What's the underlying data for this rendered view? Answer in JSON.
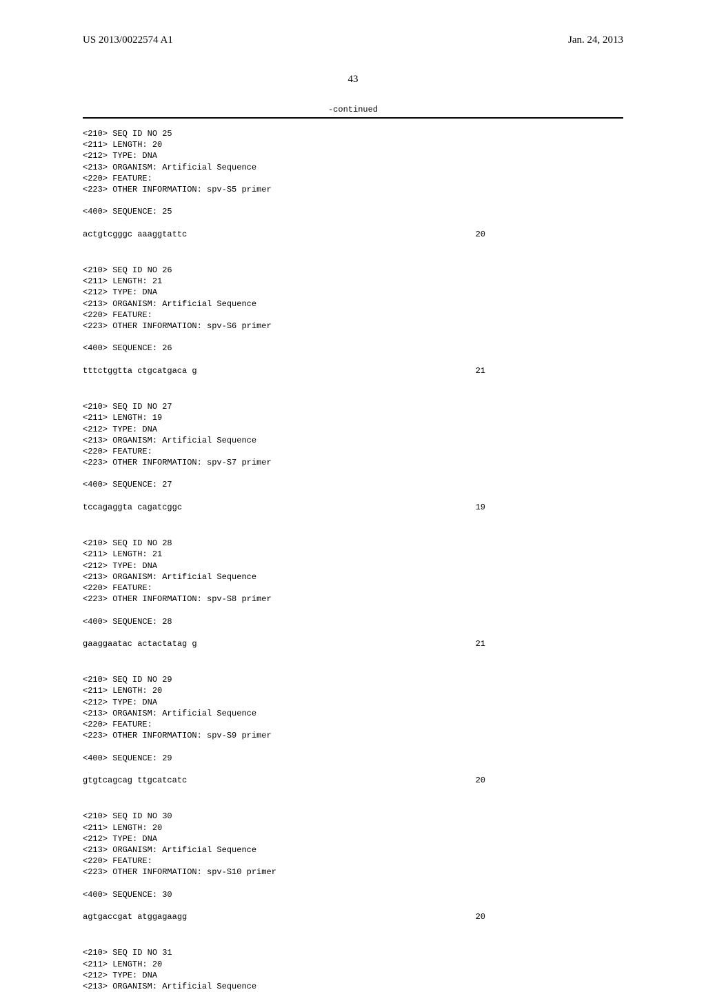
{
  "header": {
    "left": "US 2013/0022574 A1",
    "right": "Jan. 24, 2013"
  },
  "page_number": "43",
  "continued_label": "-continued",
  "entries": [
    {
      "lines": [
        "<210> SEQ ID NO 25",
        "<211> LENGTH: 20",
        "<212> TYPE: DNA",
        "<213> ORGANISM: Artificial Sequence",
        "<220> FEATURE:",
        "<223> OTHER INFORMATION: spv-S5 primer"
      ],
      "sequence_label": "<400> SEQUENCE: 25",
      "sequence": "actgtcgggc aaaggtattc",
      "length": "20"
    },
    {
      "lines": [
        "<210> SEQ ID NO 26",
        "<211> LENGTH: 21",
        "<212> TYPE: DNA",
        "<213> ORGANISM: Artificial Sequence",
        "<220> FEATURE:",
        "<223> OTHER INFORMATION: spv-S6 primer"
      ],
      "sequence_label": "<400> SEQUENCE: 26",
      "sequence": "tttctggtta ctgcatgaca g",
      "length": "21"
    },
    {
      "lines": [
        "<210> SEQ ID NO 27",
        "<211> LENGTH: 19",
        "<212> TYPE: DNA",
        "<213> ORGANISM: Artificial Sequence",
        "<220> FEATURE:",
        "<223> OTHER INFORMATION: spv-S7 primer"
      ],
      "sequence_label": "<400> SEQUENCE: 27",
      "sequence": "tccagaggta cagatcggc",
      "length": "19"
    },
    {
      "lines": [
        "<210> SEQ ID NO 28",
        "<211> LENGTH: 21",
        "<212> TYPE: DNA",
        "<213> ORGANISM: Artificial Sequence",
        "<220> FEATURE:",
        "<223> OTHER INFORMATION: spv-S8 primer"
      ],
      "sequence_label": "<400> SEQUENCE: 28",
      "sequence": "gaaggaatac actactatag g",
      "length": "21"
    },
    {
      "lines": [
        "<210> SEQ ID NO 29",
        "<211> LENGTH: 20",
        "<212> TYPE: DNA",
        "<213> ORGANISM: Artificial Sequence",
        "<220> FEATURE:",
        "<223> OTHER INFORMATION: spv-S9 primer"
      ],
      "sequence_label": "<400> SEQUENCE: 29",
      "sequence": "gtgtcagcag ttgcatcatc",
      "length": "20"
    },
    {
      "lines": [
        "<210> SEQ ID NO 30",
        "<211> LENGTH: 20",
        "<212> TYPE: DNA",
        "<213> ORGANISM: Artificial Sequence",
        "<220> FEATURE:",
        "<223> OTHER INFORMATION: spv-S10 primer"
      ],
      "sequence_label": "<400> SEQUENCE: 30",
      "sequence": "agtgaccgat atggagaagg",
      "length": "20"
    },
    {
      "lines": [
        "<210> SEQ ID NO 31",
        "<211> LENGTH: 20",
        "<212> TYPE: DNA",
        "<213> ORGANISM: Artificial Sequence"
      ],
      "sequence_label": null,
      "sequence": null,
      "length": null
    }
  ]
}
